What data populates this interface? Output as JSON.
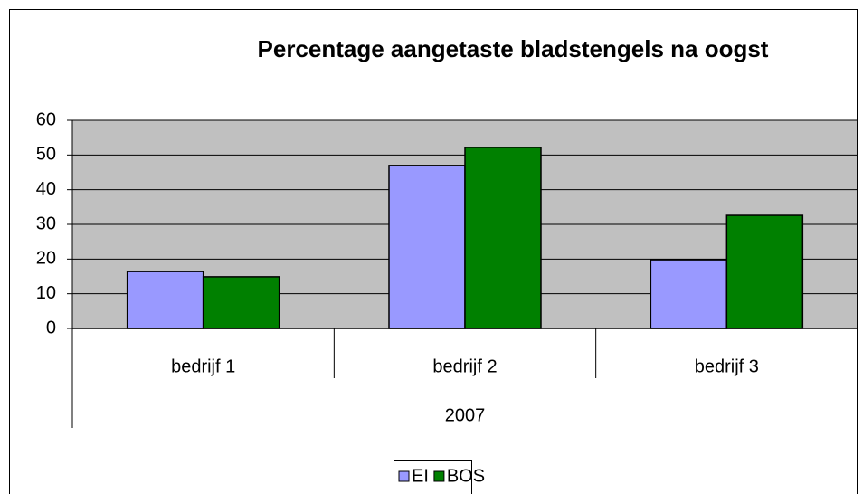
{
  "chart_data": {
    "type": "bar",
    "title": "Percentage aangetaste bladstengels na oogst",
    "categories": [
      "bedrijf 1",
      "bedrijf 2",
      "bedrijf 3"
    ],
    "group_label": "2007",
    "series": [
      {
        "name": "EI",
        "color": "#9999ff",
        "values": [
          16.4,
          47,
          19.8
        ]
      },
      {
        "name": "BOS",
        "color": "#008000",
        "values": [
          14.9,
          52.2,
          32.6
        ]
      }
    ],
    "ylim": [
      0,
      60
    ],
    "yticks": [
      0,
      10,
      20,
      30,
      40,
      50,
      60
    ],
    "grid": true,
    "legend": "bottom"
  }
}
